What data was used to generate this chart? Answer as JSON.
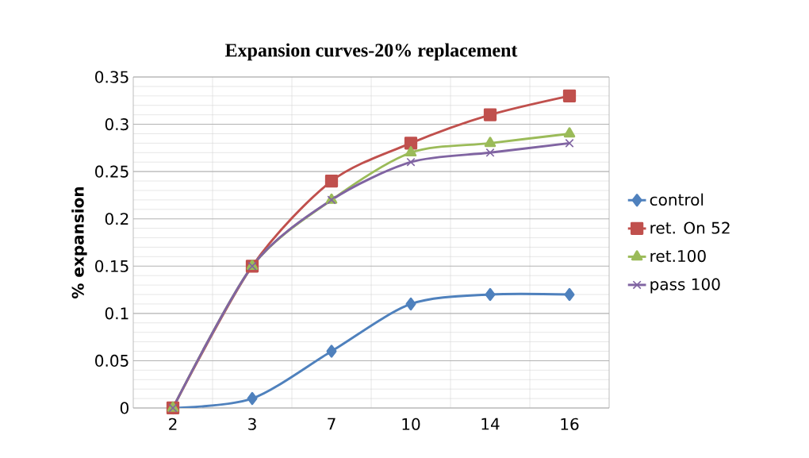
{
  "chart_data": {
    "type": "line",
    "title": "Expansion curves-20% replacement",
    "ylabel": "% expansion",
    "categories": [
      "2",
      "3",
      "7",
      "10",
      "14",
      "16"
    ],
    "series": [
      {
        "name": "control",
        "color": "#4f81bd",
        "marker": "diamond",
        "values": [
          0,
          0.01,
          0.06,
          0.11,
          0.12,
          0.12
        ]
      },
      {
        "name": "ret. On 52",
        "color": "#c0504d",
        "marker": "square",
        "values": [
          0,
          0.15,
          0.24,
          0.28,
          0.31,
          0.33
        ]
      },
      {
        "name": "ret.100",
        "color": "#9bbb59",
        "marker": "triangle",
        "values": [
          0,
          0.15,
          0.22,
          0.27,
          0.28,
          0.29
        ]
      },
      {
        "name": "pass 100",
        "color": "#8064a2",
        "marker": "cross",
        "values": [
          0,
          0.15,
          0.22,
          0.26,
          0.27,
          0.28
        ]
      }
    ],
    "ylim": [
      0,
      0.35
    ],
    "yticks": [
      0,
      0.05,
      0.1,
      0.15,
      0.2,
      0.25,
      0.3,
      0.35
    ],
    "grid": true,
    "legend": "right",
    "line_style": "solid"
  }
}
